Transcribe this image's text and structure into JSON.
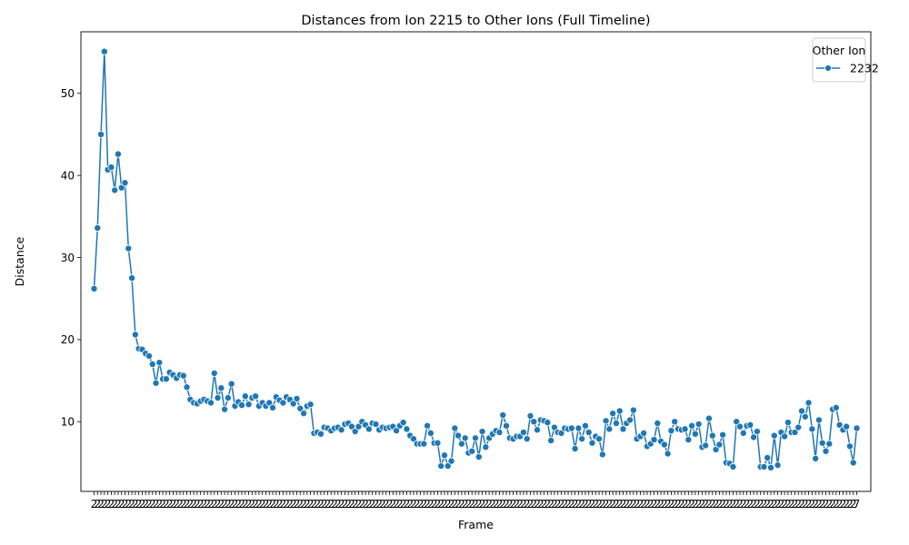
{
  "chart_data": {
    "type": "line",
    "title": "Distances from Ion 2215 to Other Ions (Full Timeline)",
    "xlabel": "Frame",
    "ylabel": "Distance",
    "ylim": [
      1.5,
      57.5
    ],
    "yticks": [
      10,
      20,
      30,
      40,
      50
    ],
    "x_tick_prefix": "2",
    "x_tick_last": "7",
    "grid": false,
    "line_color": "#1f77b4",
    "marker": "circle",
    "legend": {
      "title": "Other Ion",
      "placement": "top-right"
    },
    "series": [
      {
        "name": "2232",
        "values": [
          26.2,
          33.6,
          45.0,
          55.1,
          40.7,
          41.0,
          38.2,
          42.6,
          38.5,
          39.1,
          31.1,
          27.5,
          20.6,
          18.9,
          18.8,
          18.3,
          18.0,
          17.0,
          14.7,
          17.2,
          15.2,
          15.2,
          16.0,
          15.7,
          15.3,
          15.7,
          15.6,
          14.2,
          12.7,
          12.3,
          12.2,
          12.5,
          12.7,
          12.5,
          12.3,
          15.9,
          12.9,
          14.1,
          11.5,
          12.9,
          14.6,
          11.9,
          12.4,
          12.0,
          13.1,
          12.1,
          12.9,
          13.1,
          11.9,
          12.3,
          11.9,
          12.3,
          11.7,
          13.0,
          12.6,
          12.3,
          13.0,
          12.7,
          12.2,
          12.8,
          11.6,
          11.0,
          11.9,
          12.1,
          8.6,
          8.7,
          8.5,
          9.3,
          9.2,
          8.9,
          9.2,
          9.3,
          9.0,
          9.7,
          9.8,
          9.4,
          8.8,
          9.4,
          10.0,
          9.6,
          9.1,
          9.8,
          9.7,
          9.0,
          9.3,
          9.2,
          9.3,
          9.4,
          8.9,
          9.5,
          9.9,
          9.1,
          8.3,
          7.9,
          7.3,
          7.3,
          7.3,
          9.5,
          8.6,
          7.4,
          7.4,
          4.6,
          5.9,
          4.6,
          5.2,
          9.2,
          8.3,
          7.3,
          8.0,
          6.2,
          6.4,
          8.0,
          5.7,
          8.8,
          6.9,
          8.0,
          8.5,
          8.9,
          8.7,
          10.8,
          9.5,
          8.0,
          7.9,
          8.2,
          8.2,
          8.7,
          7.9,
          10.7,
          10.0,
          9.0,
          10.2,
          10.1,
          9.9,
          7.7,
          9.3,
          8.7,
          8.6,
          9.2,
          9.1,
          9.2,
          6.7,
          9.2,
          7.9,
          9.5,
          8.7,
          7.4,
          8.2,
          7.9,
          6.0,
          10.1,
          9.1,
          11.0,
          9.8,
          11.3,
          9.1,
          9.8,
          10.2,
          11.4,
          7.9,
          8.2,
          8.6,
          7.0,
          7.3,
          7.8,
          9.8,
          7.6,
          7.2,
          6.1,
          8.9,
          10.0,
          9.1,
          9.0,
          9.1,
          7.8,
          9.5,
          8.5,
          9.7,
          6.9,
          7.1,
          10.4,
          8.3,
          6.6,
          7.2,
          8.4,
          5.0,
          4.9,
          4.5,
          10.0,
          9.4,
          8.6,
          9.5,
          9.6,
          8.1,
          8.8,
          4.5,
          4.5,
          5.6,
          4.4,
          8.3,
          4.7,
          8.7,
          8.2,
          9.9,
          8.7,
          8.7,
          9.3,
          11.3,
          10.6,
          12.3,
          9.1,
          5.5,
          10.2,
          7.4,
          6.4,
          7.3,
          11.5,
          11.7,
          9.6,
          9.0,
          9.4,
          7.0,
          5.0,
          9.2
        ]
      }
    ]
  }
}
